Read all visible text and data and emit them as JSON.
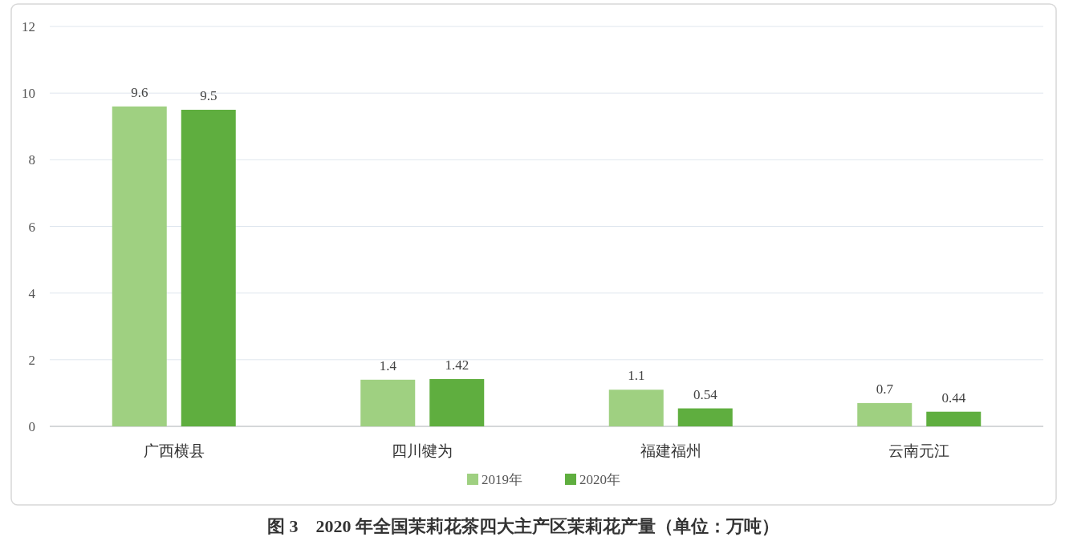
{
  "chart_data": {
    "type": "bar",
    "title": "图 3　2020 年全国茉莉花茶四大主产区茉莉花产量（单位：万吨）",
    "categories": [
      "广西横县",
      "四川犍为",
      "福建福州",
      "云南元江"
    ],
    "series": [
      {
        "name": "2019年",
        "color": "#9fd081",
        "values": [
          9.6,
          1.4,
          1.1,
          0.7
        ]
      },
      {
        "name": "2020年",
        "color": "#5fae3f",
        "values": [
          9.5,
          1.42,
          0.54,
          0.44
        ]
      }
    ],
    "ylim": [
      0,
      12
    ],
    "yticks": [
      0,
      2,
      4,
      6,
      8,
      10,
      12
    ],
    "grid": "y",
    "data_labels": true,
    "legend": "bottom"
  }
}
